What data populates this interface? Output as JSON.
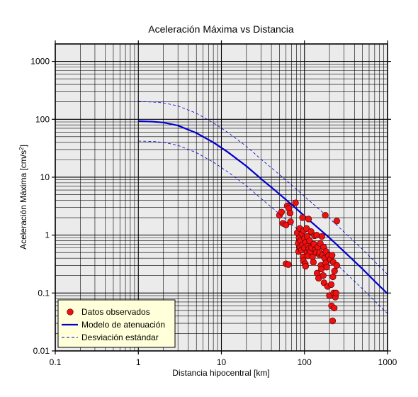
{
  "chart_data": {
    "type": "scatter",
    "title": "Aceleración Máxima vs Distancia",
    "xlabel": "Distancia hipocentral [km]",
    "ylabel_main": "Aceleración Máxima [cm/s",
    "ylabel_sup": "2",
    "ylabel_tail": "]",
    "xscale": "log",
    "yscale": "log",
    "xlim": [
      0.1,
      1000
    ],
    "ylim": [
      0.01,
      2000
    ],
    "grid": true,
    "legend_position": "bottom-left",
    "x_ticks": [
      {
        "value": 0.1,
        "label": "0.1"
      },
      {
        "value": 1,
        "label": "1"
      },
      {
        "value": 10,
        "label": "10"
      },
      {
        "value": 100,
        "label": "100"
      },
      {
        "value": 1000,
        "label": "1000"
      }
    ],
    "y_ticks": [
      {
        "value": 0.01,
        "label": "0.01"
      },
      {
        "value": 0.1,
        "label": "0.1"
      },
      {
        "value": 1,
        "label": "1"
      },
      {
        "value": 10,
        "label": "10"
      },
      {
        "value": 100,
        "label": "100"
      },
      {
        "value": 1000,
        "label": "1000"
      }
    ],
    "series": [
      {
        "name": "Datos observados",
        "kind": "points",
        "color": "#ee1111",
        "points": [
          [
            50,
            2.2
          ],
          [
            53,
            2.5
          ],
          [
            55,
            1.6
          ],
          [
            60,
            1.5
          ],
          [
            62,
            3.2
          ],
          [
            65,
            2.9
          ],
          [
            67,
            2.4
          ],
          [
            68,
            1.7
          ],
          [
            60,
            0.32
          ],
          [
            64,
            0.31
          ],
          [
            78,
            3.6
          ],
          [
            82,
            1.1
          ],
          [
            84,
            0.72
          ],
          [
            85,
            0.52
          ],
          [
            86,
            0.9
          ],
          [
            88,
            0.62
          ],
          [
            88,
            1.3
          ],
          [
            90,
            0.8
          ],
          [
            92,
            0.55
          ],
          [
            93,
            1.05
          ],
          [
            95,
            0.68
          ],
          [
            95,
            2.0
          ],
          [
            96,
            0.42
          ],
          [
            97,
            0.36
          ],
          [
            98,
            1.2
          ],
          [
            100,
            0.6
          ],
          [
            100,
            0.88
          ],
          [
            102,
            0.32
          ],
          [
            103,
            0.29
          ],
          [
            104,
            0.75
          ],
          [
            106,
            1.3
          ],
          [
            107,
            0.5
          ],
          [
            108,
            0.95
          ],
          [
            110,
            0.65
          ],
          [
            110,
            0.44
          ],
          [
            112,
            1.9
          ],
          [
            113,
            0.58
          ],
          [
            115,
            0.8
          ],
          [
            118,
            0.52
          ],
          [
            120,
            1.15
          ],
          [
            122,
            0.6
          ],
          [
            125,
            0.42
          ],
          [
            128,
            0.34
          ],
          [
            130,
            0.7
          ],
          [
            132,
            0.98
          ],
          [
            135,
            0.55
          ],
          [
            138,
            0.5
          ],
          [
            140,
            1.0
          ],
          [
            142,
            0.22
          ],
          [
            145,
            0.62
          ],
          [
            148,
            0.18
          ],
          [
            150,
            0.46
          ],
          [
            152,
            0.5
          ],
          [
            155,
            0.72
          ],
          [
            158,
            0.3
          ],
          [
            160,
            0.26
          ],
          [
            162,
            0.95
          ],
          [
            165,
            0.45
          ],
          [
            168,
            0.2
          ],
          [
            170,
            0.62
          ],
          [
            172,
            0.15
          ],
          [
            175,
            0.4
          ],
          [
            178,
            2.2
          ],
          [
            180,
            0.33
          ],
          [
            182,
            0.52
          ],
          [
            185,
            0.28
          ],
          [
            190,
            0.13
          ],
          [
            195,
            0.44
          ],
          [
            200,
            0.09
          ],
          [
            205,
            0.38
          ],
          [
            210,
            0.14
          ],
          [
            212,
            0.06
          ],
          [
            215,
            0.45
          ],
          [
            218,
            0.033
          ],
          [
            220,
            0.19
          ],
          [
            222,
            0.34
          ],
          [
            225,
            0.1
          ],
          [
            228,
            0.055
          ],
          [
            230,
            0.24
          ],
          [
            235,
            0.085
          ],
          [
            240,
            0.1
          ],
          [
            245,
            0.3
          ],
          [
            245,
            1.75
          ]
        ]
      },
      {
        "name": "Modelo de atenuación",
        "kind": "line",
        "color": "#0000cc",
        "points": [
          [
            1,
            93
          ],
          [
            1.5,
            91
          ],
          [
            2,
            88
          ],
          [
            3,
            78
          ],
          [
            5,
            58
          ],
          [
            8,
            40
          ],
          [
            12,
            27
          ],
          [
            20,
            15.5
          ],
          [
            30,
            9.4
          ],
          [
            50,
            5.1
          ],
          [
            80,
            2.85
          ],
          [
            120,
            1.7
          ],
          [
            200,
            0.9
          ],
          [
            300,
            0.52
          ],
          [
            500,
            0.26
          ],
          [
            700,
            0.16
          ],
          [
            1000,
            0.097
          ]
        ]
      },
      {
        "name": "Desviación estándar",
        "kind": "dashed",
        "color": "#0000cc",
        "points": [
          [
            1,
            203
          ],
          [
            1.5,
            199
          ],
          [
            2,
            192
          ],
          [
            3,
            170
          ],
          [
            5,
            127
          ],
          [
            8,
            87
          ],
          [
            12,
            59
          ],
          [
            20,
            34
          ],
          [
            30,
            20.5
          ],
          [
            50,
            11.1
          ],
          [
            80,
            6.2
          ],
          [
            120,
            3.7
          ],
          [
            200,
            1.96
          ],
          [
            300,
            1.13
          ],
          [
            500,
            0.57
          ],
          [
            700,
            0.35
          ],
          [
            1000,
            0.21
          ]
        ]
      },
      {
        "name": "Desviación estándar (inferior)",
        "kind": "dashed",
        "color": "#0000cc",
        "legend": false,
        "points": [
          [
            1,
            42
          ],
          [
            1.5,
            41.5
          ],
          [
            2,
            40
          ],
          [
            3,
            35.5
          ],
          [
            5,
            26.5
          ],
          [
            8,
            18.2
          ],
          [
            12,
            12.3
          ],
          [
            20,
            7.1
          ],
          [
            30,
            4.3
          ],
          [
            50,
            2.32
          ],
          [
            80,
            1.3
          ],
          [
            120,
            0.78
          ],
          [
            200,
            0.41
          ],
          [
            300,
            0.236
          ],
          [
            500,
            0.118
          ],
          [
            700,
            0.073
          ],
          [
            1000,
            0.044
          ]
        ]
      }
    ]
  },
  "legend": {
    "items": [
      {
        "label": "Datos observados",
        "kind": "points",
        "color": "#ee1111"
      },
      {
        "label": "Modelo de atenuación",
        "kind": "line",
        "color": "#0000cc"
      },
      {
        "label": "Desviación estándar",
        "kind": "dashed",
        "color": "#0000cc"
      }
    ],
    "background": "#ffffd9"
  },
  "style": {
    "plot_background": "#ebebeb",
    "grid_color": "#000000"
  }
}
